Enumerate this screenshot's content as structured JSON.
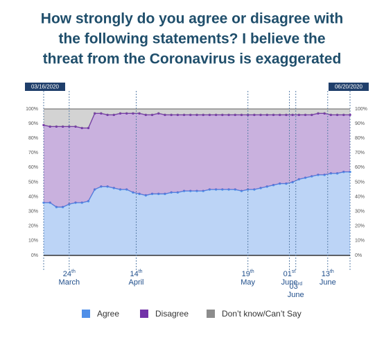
{
  "chart_data": {
    "type": "stacked_area",
    "title": [
      "How strongly do you agree or disagree with",
      "the following statements? I believe the",
      "threat from the Coronavirus is exaggerated"
    ],
    "x": [
      "03/16/2020",
      "03/18/2020",
      "03/20/2020",
      "03/22/2020",
      "03/24/2020",
      "03/26/2020",
      "03/28/2020",
      "03/30/2020",
      "04/01/2020",
      "04/03/2020",
      "04/05/2020",
      "04/07/2020",
      "04/09/2020",
      "04/11/2020",
      "04/13/2020",
      "04/15/2020",
      "04/17/2020",
      "04/19/2020",
      "04/21/2020",
      "04/23/2020",
      "04/25/2020",
      "04/27/2020",
      "04/29/2020",
      "05/01/2020",
      "05/03/2020",
      "05/05/2020",
      "05/07/2020",
      "05/09/2020",
      "05/11/2020",
      "05/13/2020",
      "05/15/2020",
      "05/17/2020",
      "05/19/2020",
      "05/21/2020",
      "05/23/2020",
      "05/25/2020",
      "05/27/2020",
      "05/29/2020",
      "05/31/2020",
      "06/02/2020",
      "06/04/2020",
      "06/06/2020",
      "06/08/2020",
      "06/10/2020",
      "06/12/2020",
      "06/14/2020",
      "06/16/2020",
      "06/18/2020",
      "06/20/2020"
    ],
    "series": [
      {
        "name": "Agree",
        "color": "#4f8fe8",
        "values": [
          36,
          36,
          33,
          33,
          35,
          36,
          36,
          37,
          45,
          47,
          47,
          46,
          45,
          45,
          43,
          42,
          41,
          42,
          42,
          42,
          43,
          43,
          44,
          44,
          44,
          44,
          45,
          45,
          45,
          45,
          45,
          44,
          45,
          45,
          46,
          47,
          48,
          49,
          49,
          50,
          52,
          53,
          54,
          55,
          55,
          56,
          56,
          57,
          57
        ]
      },
      {
        "name": "Disagree",
        "color": "#7232a8",
        "values": [
          53,
          52,
          55,
          55,
          53,
          52,
          51,
          50,
          52,
          50,
          49,
          50,
          52,
          52,
          54,
          55,
          55,
          54,
          55,
          54,
          53,
          53,
          52,
          52,
          52,
          52,
          51,
          51,
          51,
          51,
          51,
          52,
          51,
          51,
          50,
          49,
          48,
          47,
          47,
          46,
          44,
          43,
          42,
          42,
          42,
          40,
          40,
          39,
          39
        ]
      },
      {
        "name": "Don’t know/Can’t Say",
        "color": "#8c8c8c",
        "values": [
          11,
          12,
          12,
          12,
          12,
          12,
          13,
          13,
          3,
          3,
          4,
          4,
          3,
          3,
          3,
          3,
          4,
          4,
          3,
          4,
          4,
          4,
          4,
          4,
          4,
          4,
          4,
          4,
          4,
          4,
          4,
          4,
          4,
          4,
          4,
          4,
          4,
          4,
          4,
          4,
          4,
          4,
          4,
          3,
          3,
          4,
          4,
          4,
          4
        ]
      }
    ],
    "xticks": [
      {
        "value": "03/24/2020",
        "label": "24th March"
      },
      {
        "value": "04/14/2020",
        "label": "14th April"
      },
      {
        "value": "05/19/2020",
        "label": "19th May"
      },
      {
        "value": "06/01/2020",
        "label": "01st June"
      },
      {
        "value": "06/03/2020",
        "label": "03rd June"
      },
      {
        "value": "06/13/2020",
        "label": "13th June"
      }
    ],
    "ylim": [
      0,
      100
    ],
    "yticks": [
      {
        "value": 0,
        "label": "0%"
      },
      {
        "value": 10,
        "label": "10%"
      },
      {
        "value": 20,
        "label": "20%"
      },
      {
        "value": 30,
        "label": "30%"
      },
      {
        "value": 40,
        "label": "40%"
      },
      {
        "value": 50,
        "label": "50%"
      },
      {
        "value": 60,
        "label": "60%"
      },
      {
        "value": 70,
        "label": "70%"
      },
      {
        "value": 80,
        "label": "80%"
      },
      {
        "value": 90,
        "label": "90%"
      },
      {
        "value": 100,
        "label": "100%"
      }
    ],
    "grid": false,
    "legend": "bottom"
  }
}
